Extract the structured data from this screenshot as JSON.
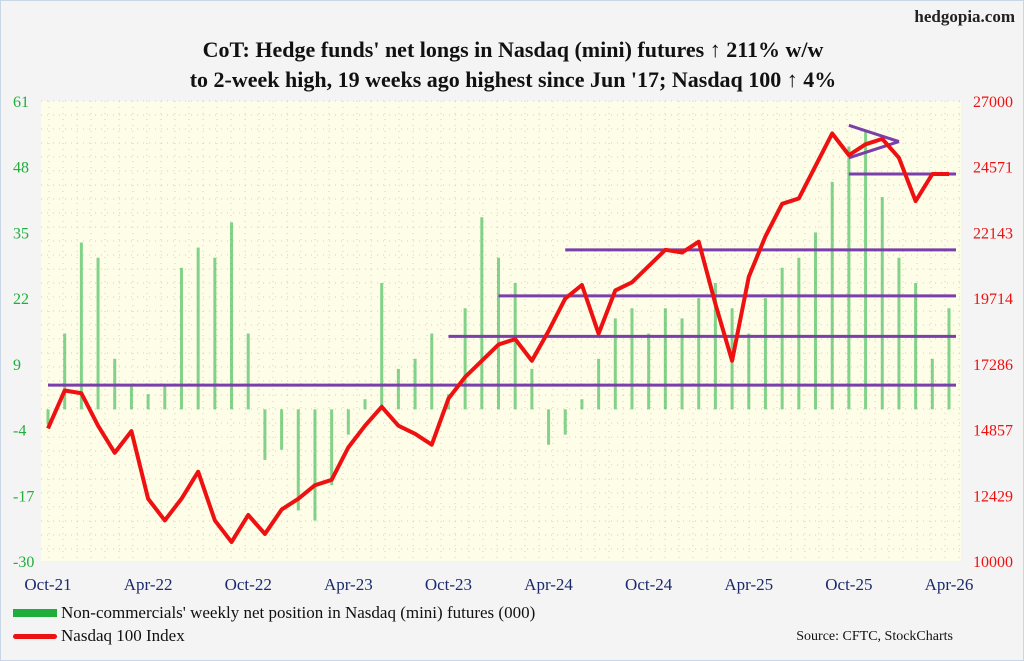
{
  "site": "hedgopia.com",
  "title_line1": "CoT: Hedge funds' net longs in Nasdaq (mini) futures ↑ 211% w/w",
  "title_line2": "to 2-week high, 19 weeks ago highest since Jun '17; Nasdaq 100 ↑ 4%",
  "source": "Source: CFTC, StockCharts",
  "chart_data": {
    "type": "bar+line",
    "x_start": "Oct-21",
    "x_step": "month",
    "xtick_labels": [
      "Oct-21",
      "Apr-22",
      "Oct-22",
      "Apr-23",
      "Oct-23",
      "Apr-24",
      "Oct-24",
      "Apr-25",
      "Oct-25",
      "Apr-26"
    ],
    "left_axis": {
      "ylim": [
        -30,
        61
      ],
      "ticks": [
        "61",
        "48",
        "35",
        "22",
        "9",
        "-4",
        "-17",
        "-30"
      ],
      "color": "#1fae3c"
    },
    "right_axis": {
      "ylim": [
        10000,
        27000
      ],
      "ticks": [
        "27000",
        "24571",
        "22143",
        "19714",
        "17286",
        "14857",
        "12429",
        "10000"
      ],
      "color": "#ee1111"
    },
    "series": [
      {
        "name": "Non-commercials' weekly net position in Nasdaq (mini) futures (000)",
        "type": "bar",
        "axis": "left",
        "color": "#1fae3c",
        "values": [
          -3,
          15,
          33,
          30,
          10,
          5,
          3,
          5,
          28,
          32,
          30,
          37,
          15,
          -10,
          -8,
          -20,
          -22,
          -15,
          -5,
          2,
          25,
          8,
          10,
          15,
          3,
          20,
          38,
          30,
          25,
          8,
          -7,
          -5,
          2,
          10,
          18,
          20,
          15,
          20,
          18,
          22,
          25,
          20,
          15,
          22,
          28,
          30,
          35,
          45,
          52,
          55,
          42,
          30,
          25,
          10,
          20
        ]
      },
      {
        "name": "Nasdaq 100 Index",
        "type": "line",
        "axis": "right",
        "color": "#ee1111",
        "values": [
          14900,
          16300,
          16200,
          15000,
          14000,
          14800,
          12300,
          11500,
          12300,
          13300,
          11500,
          10700,
          11700,
          11000,
          11900,
          12300,
          12800,
          13000,
          14200,
          15000,
          15700,
          15000,
          14700,
          14300,
          16000,
          16800,
          17400,
          18000,
          18200,
          17400,
          18500,
          19700,
          20200,
          18400,
          20000,
          20300,
          20900,
          21500,
          21400,
          21800,
          19500,
          17400,
          20500,
          22000,
          23200,
          23400,
          24600,
          25800,
          25000,
          25400,
          25600,
          24900,
          23300,
          24300,
          24300
        ]
      }
    ],
    "annotations": {
      "color": "#7a3fa8",
      "horizontal_lines": [
        {
          "value": 16500,
          "from_month": 0
        },
        {
          "value": 18300,
          "from_month": 24
        },
        {
          "value": 19800,
          "from_month": 27
        },
        {
          "value": 21500,
          "from_month": 31
        },
        {
          "value": 24300,
          "from_month": 48
        }
      ],
      "triangle": [
        {
          "from": [
            48,
            26100
          ],
          "to": [
            51,
            25500
          ]
        },
        {
          "from": [
            48,
            24900
          ],
          "to": [
            51,
            25500
          ]
        }
      ]
    },
    "legend_placement": "bottom-left",
    "grid": true
  }
}
